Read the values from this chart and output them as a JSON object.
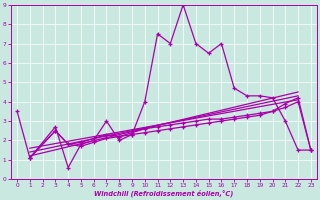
{
  "title": "",
  "xlabel": "Windchill (Refroidissement éolien,°C)",
  "ylabel": "",
  "xlim": [
    -0.5,
    23.5
  ],
  "ylim": [
    0,
    9
  ],
  "xticks": [
    0,
    1,
    2,
    3,
    4,
    5,
    6,
    7,
    8,
    9,
    10,
    11,
    12,
    13,
    14,
    15,
    16,
    17,
    18,
    19,
    20,
    21,
    22,
    23
  ],
  "yticks": [
    0,
    1,
    2,
    3,
    4,
    5,
    6,
    7,
    8,
    9
  ],
  "bg_color": "#c8e8e0",
  "line_color": "#aa00aa",
  "grid_color": "#ffffff",
  "series1_x": [
    0,
    1,
    3,
    4,
    5,
    6,
    7,
    8,
    9,
    10,
    11,
    12,
    13,
    14,
    15,
    16,
    17,
    18,
    19,
    20,
    21,
    22,
    23
  ],
  "series1_y": [
    3.5,
    1.1,
    2.7,
    0.6,
    1.8,
    2.0,
    3.0,
    2.0,
    2.3,
    4.0,
    7.5,
    7.0,
    9.0,
    7.0,
    6.5,
    7.0,
    4.7,
    4.3,
    4.3,
    4.2,
    3.0,
    1.5,
    1.5
  ],
  "series2_x": [
    1,
    3,
    4,
    5,
    6,
    7,
    8,
    9,
    10,
    11,
    12,
    13,
    14,
    15,
    16,
    17,
    18,
    19,
    20,
    21,
    22,
    23
  ],
  "series2_y": [
    1.1,
    2.5,
    1.8,
    1.9,
    2.1,
    2.3,
    2.2,
    2.4,
    2.6,
    2.7,
    2.8,
    2.9,
    3.0,
    3.1,
    3.1,
    3.2,
    3.3,
    3.4,
    3.5,
    3.7,
    4.0,
    1.5
  ],
  "series3_x": [
    1,
    3,
    4,
    5,
    6,
    7,
    8,
    9,
    10,
    11,
    12,
    13,
    14,
    15,
    16,
    17,
    18,
    19,
    20,
    21,
    22,
    23
  ],
  "series3_y": [
    1.1,
    2.5,
    1.8,
    1.7,
    1.9,
    2.1,
    2.2,
    2.3,
    2.4,
    2.5,
    2.6,
    2.7,
    2.8,
    2.9,
    3.0,
    3.1,
    3.2,
    3.3,
    3.5,
    3.9,
    4.2,
    1.5
  ],
  "series4_x": [
    0,
    22,
    23
  ],
  "series4_y": [
    1.5,
    4.2,
    1.5
  ]
}
